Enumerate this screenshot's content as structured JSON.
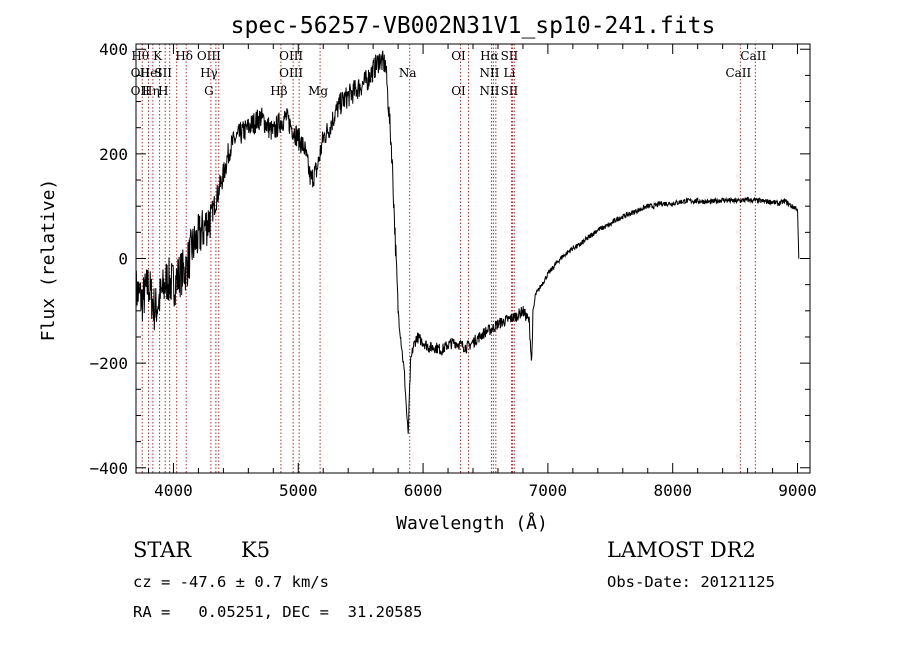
{
  "chart_data": {
    "type": "line",
    "title": "spec-56257-VB002N31V1_sp10-241.fits",
    "xlabel": "Wavelength (Å)",
    "ylabel": "Flux (relative)",
    "xlim": [
      3700,
      9100
    ],
    "ylim": [
      -410,
      410
    ],
    "xticks": [
      4000,
      5000,
      6000,
      7000,
      8000,
      9000
    ],
    "yticks": [
      -400,
      -200,
      0,
      200,
      400
    ],
    "grid": false,
    "series": [
      {
        "x": [
          3700,
          3750,
          3800,
          3850,
          3900,
          3950,
          4000,
          4050,
          4100,
          4150,
          4200,
          4250,
          4300,
          4350,
          4400,
          4450,
          4500,
          4550,
          4600,
          4650,
          4700,
          4750,
          4800,
          4850,
          4900,
          4950,
          5000,
          5050,
          5100,
          5150,
          5200,
          5250,
          5300,
          5350,
          5400,
          5450,
          5500,
          5550,
          5600,
          5650,
          5700,
          5750,
          5800,
          5850,
          5880,
          5900,
          5920,
          5950,
          6000,
          6050,
          6100,
          6150,
          6200,
          6250,
          6300,
          6350,
          6400,
          6450,
          6500,
          6550,
          6600,
          6650,
          6700,
          6750,
          6800,
          6850,
          6870,
          6880,
          6900,
          6950,
          7000,
          7050,
          7100,
          7150,
          7200,
          7250,
          7300,
          7350,
          7400,
          7450,
          7500,
          7550,
          7600,
          7650,
          7700,
          7750,
          7800,
          7850,
          7900,
          7950,
          8000,
          8100,
          8200,
          8300,
          8400,
          8500,
          8600,
          8700,
          8800,
          8850,
          8900,
          8950,
          9000,
          9010
        ],
        "y": [
          -60,
          -80,
          -50,
          -100,
          -70,
          -40,
          -50,
          -30,
          -20,
          20,
          40,
          60,
          80,
          120,
          160,
          210,
          230,
          240,
          250,
          260,
          270,
          255,
          240,
          260,
          270,
          250,
          230,
          210,
          150,
          170,
          230,
          250,
          280,
          300,
          310,
          320,
          330,
          340,
          360,
          380,
          370,
          200,
          -100,
          -220,
          -340,
          -200,
          -170,
          -150,
          -160,
          -170,
          -170,
          -175,
          -165,
          -160,
          -165,
          -170,
          -160,
          -150,
          -140,
          -135,
          -125,
          -120,
          -115,
          -110,
          -100,
          -120,
          -200,
          -110,
          -70,
          -50,
          -30,
          -15,
          0,
          10,
          20,
          25,
          35,
          45,
          55,
          60,
          65,
          75,
          80,
          85,
          90,
          95,
          100,
          100,
          105,
          105,
          105,
          110,
          110,
          108,
          112,
          110,
          112,
          110,
          108,
          105,
          110,
          100,
          95,
          0
        ]
      }
    ],
    "lines": [
      {
        "x": 3750,
        "labels": [
          "Hθ",
          "OII",
          "OII"
        ]
      },
      {
        "x": 3800,
        "labels": [
          " ",
          " ",
          " "
        ]
      },
      {
        "x": 3835,
        "labels": [
          " ",
          "HeI",
          "Hη"
        ]
      },
      {
        "x": 3889,
        "labels": [
          "K",
          " ",
          " "
        ]
      },
      {
        "x": 3934,
        "labels": [
          " ",
          "SII",
          "H"
        ]
      },
      {
        "x": 3970,
        "labels": [
          " ",
          " ",
          " "
        ]
      },
      {
        "x": 4026,
        "labels": [
          " ",
          " ",
          " "
        ]
      },
      {
        "x": 4102,
        "labels": [
          "Hδ",
          " ",
          " "
        ]
      },
      {
        "x": 4300,
        "labels": [
          "OIII",
          "Hγ",
          "G"
        ]
      },
      {
        "x": 4340,
        "labels": [
          " ",
          " ",
          " "
        ]
      },
      {
        "x": 4363,
        "labels": [
          " ",
          " ",
          " "
        ]
      },
      {
        "x": 4861,
        "labels": [
          " ",
          " ",
          "Hβ"
        ]
      },
      {
        "x": 4959,
        "labels": [
          "OIII",
          "OIII",
          " "
        ]
      },
      {
        "x": 5007,
        "labels": [
          " ",
          " ",
          " "
        ]
      },
      {
        "x": 5175,
        "labels": [
          " ",
          " ",
          "Mg"
        ]
      },
      {
        "x": 5893,
        "labels": [
          " ",
          "Na",
          " "
        ]
      },
      {
        "x": 6300,
        "labels": [
          "OI",
          " ",
          "OI"
        ]
      },
      {
        "x": 6364,
        "labels": [
          " ",
          " ",
          " "
        ]
      },
      {
        "x": 6548,
        "labels": [
          "Hα",
          "NII",
          "NII"
        ]
      },
      {
        "x": 6563,
        "labels": [
          " ",
          " ",
          " "
        ]
      },
      {
        "x": 6583,
        "labels": [
          " ",
          " ",
          " "
        ]
      },
      {
        "x": 6708,
        "labels": [
          "SII",
          "Li",
          "SII"
        ]
      },
      {
        "x": 6717,
        "labels": [
          " ",
          " ",
          " "
        ]
      },
      {
        "x": 6731,
        "labels": [
          " ",
          " ",
          " "
        ]
      },
      {
        "x": 8542,
        "labels": [
          " ",
          "CaII",
          " "
        ]
      },
      {
        "x": 8662,
        "labels": [
          "CaII",
          " ",
          " "
        ]
      }
    ],
    "line_color": "#b03030"
  },
  "info": {
    "object_class": "STAR",
    "subclass": "K5",
    "survey": "LAMOST DR2",
    "redshift": "cz = -47.6 ± 0.7 km/s",
    "obs_date": "Obs-Date: 20121125",
    "coords": "RA =   0.05251, DEC =  31.20585"
  }
}
